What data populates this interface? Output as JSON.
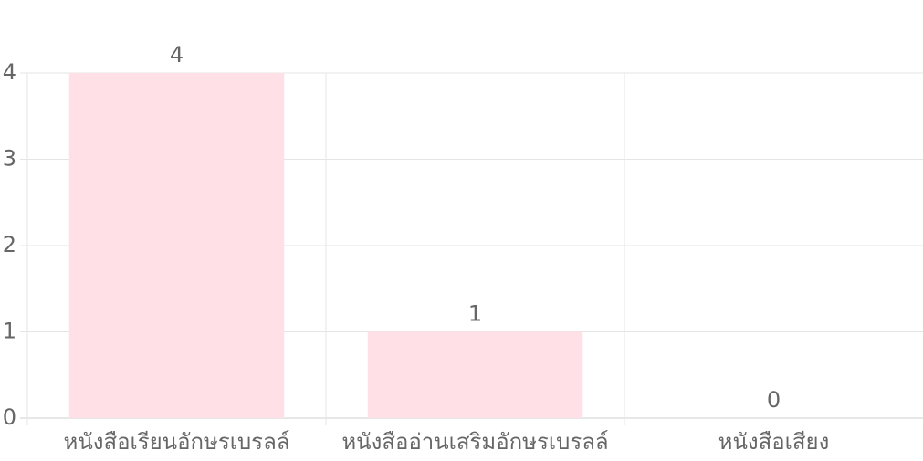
{
  "chart_data": {
    "type": "bar",
    "categories": [
      "หนังสือเรียนอักษรเบรลล์",
      "หนังสืออ่านเสริมอักษรเบรลล์",
      "หนังสือเสียง"
    ],
    "values": [
      4,
      1,
      0
    ],
    "data_labels": [
      "4",
      "1",
      "0"
    ],
    "y_ticks": [
      "0",
      "1",
      "2",
      "3",
      "4"
    ],
    "ylim": [
      0,
      4
    ],
    "grid": true,
    "colors": {
      "bar_fill": "#ffe0e6",
      "grid": "#e5e5e5",
      "text": "#666666"
    }
  }
}
